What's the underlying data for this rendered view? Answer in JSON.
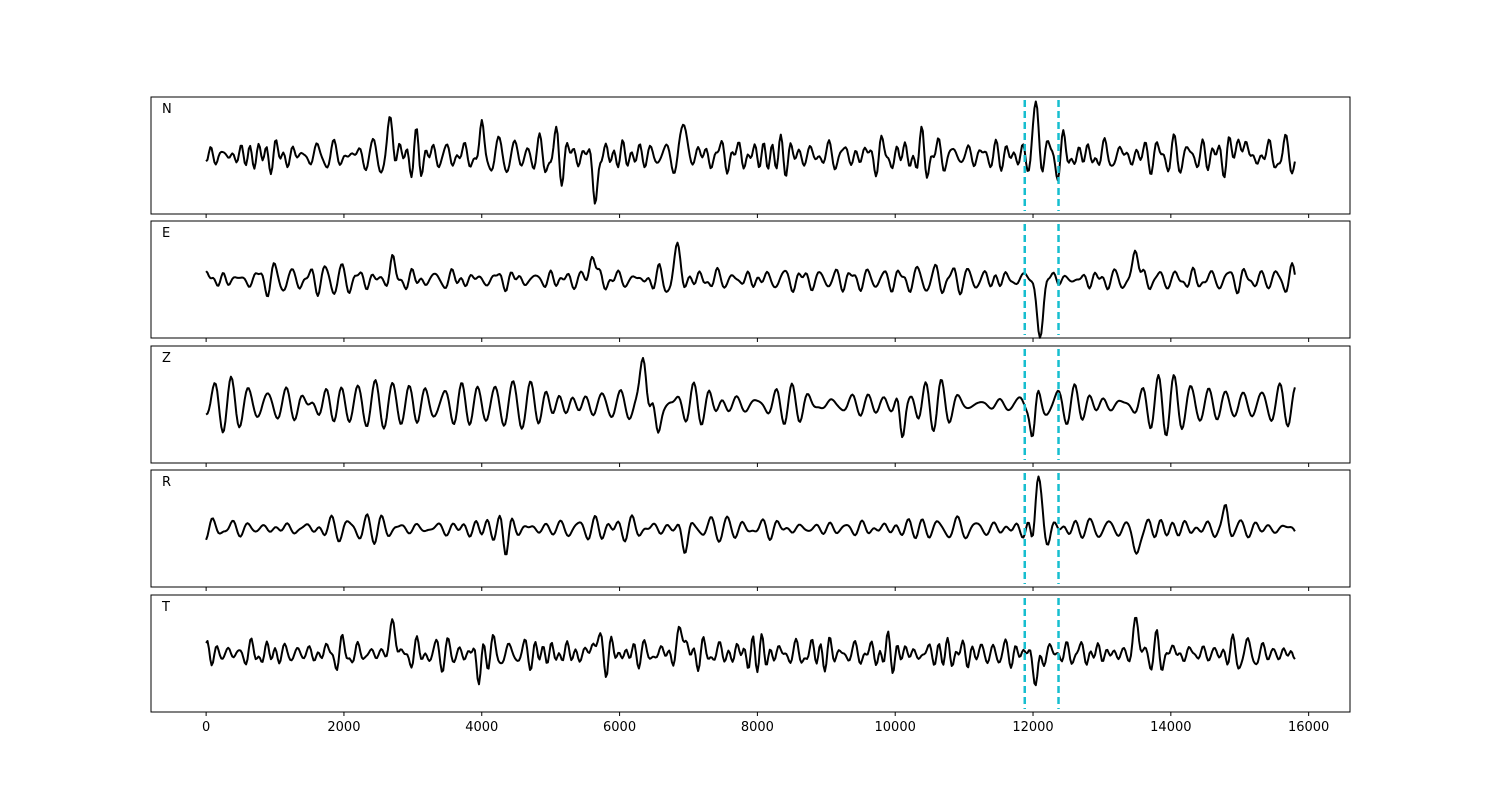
{
  "chart_data": {
    "type": "line",
    "description_free": true,
    "xlim": [
      -800,
      16600
    ],
    "ylim": [
      -1.6,
      1.6
    ],
    "x_range_of_data": [
      0,
      15800
    ],
    "xticks": [
      0,
      2000,
      4000,
      6000,
      8000,
      10000,
      12000,
      14000,
      16000
    ],
    "xtick_labels": [
      "0",
      "2000",
      "4000",
      "6000",
      "8000",
      "10000",
      "12000",
      "14000",
      "16000"
    ],
    "grid": false,
    "pick_markers": {
      "x": [
        11880,
        12370
      ],
      "color": "#17becf",
      "style": "dashed"
    },
    "line_color": "#000000",
    "panels": [
      {
        "label": "N",
        "seed": 11,
        "noise": 0.45,
        "events": [
          {
            "x": 2700,
            "amp": 0.8,
            "width": 90
          },
          {
            "x": 4000,
            "amp": 0.7,
            "width": 60
          },
          {
            "x": 5650,
            "amp": -1.4,
            "width": 70
          },
          {
            "x": 6950,
            "amp": 0.9,
            "width": 80
          },
          {
            "x": 12050,
            "amp": 1.2,
            "width": 90
          },
          {
            "x": 15000,
            "amp": 0.8,
            "width": 70
          }
        ]
      },
      {
        "label": "E",
        "seed": 23,
        "noise": 0.35,
        "events": [
          {
            "x": 2700,
            "amp": 0.6,
            "width": 70
          },
          {
            "x": 5600,
            "amp": 0.8,
            "width": 90
          },
          {
            "x": 6850,
            "amp": 0.8,
            "width": 90
          },
          {
            "x": 12100,
            "amp": -1.5,
            "width": 110
          },
          {
            "x": 13500,
            "amp": 0.9,
            "width": 90
          }
        ]
      },
      {
        "label": "Z",
        "seed": 37,
        "noise": 0.55,
        "events": [
          {
            "x": 6350,
            "amp": 1.4,
            "width": 90
          },
          {
            "x": 6550,
            "amp": -0.9,
            "width": 80
          },
          {
            "x": 10100,
            "amp": -0.9,
            "width": 70
          },
          {
            "x": 12000,
            "amp": -0.9,
            "width": 70
          }
        ]
      },
      {
        "label": "R",
        "seed": 53,
        "noise": 0.32,
        "events": [
          {
            "x": 4350,
            "amp": -0.5,
            "width": 70
          },
          {
            "x": 6950,
            "amp": -0.6,
            "width": 80
          },
          {
            "x": 12050,
            "amp": 1.5,
            "width": 110
          },
          {
            "x": 12000,
            "amp": -0.9,
            "width": 70
          },
          {
            "x": 13500,
            "amp": -0.8,
            "width": 90
          },
          {
            "x": 14800,
            "amp": 0.6,
            "width": 70
          }
        ]
      },
      {
        "label": "T",
        "seed": 71,
        "noise": 0.42,
        "events": [
          {
            "x": 2700,
            "amp": 0.9,
            "width": 90
          },
          {
            "x": 3950,
            "amp": -0.7,
            "width": 60
          },
          {
            "x": 5650,
            "amp": 1.5,
            "width": 70
          },
          {
            "x": 5650,
            "amp": -1.0,
            "width": 60
          },
          {
            "x": 6900,
            "amp": 1.0,
            "width": 70
          },
          {
            "x": 12050,
            "amp": -0.9,
            "width": 80
          },
          {
            "x": 13500,
            "amp": 1.0,
            "width": 80
          }
        ]
      }
    ]
  }
}
